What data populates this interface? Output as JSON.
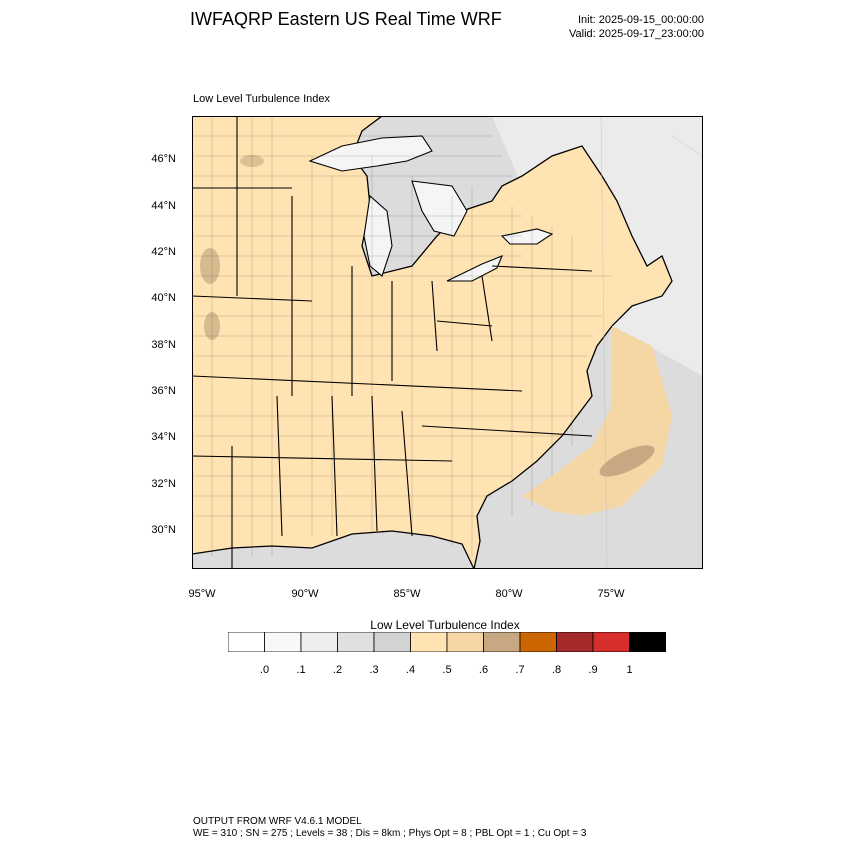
{
  "header": {
    "title": "IWFAQRP Eastern US Real Time WRF",
    "init": "Init: 2025-09-15_00:00:00",
    "valid": "Valid: 2025-09-17_23:00:00"
  },
  "map": {
    "field_title": "Low Level Turbulence Index",
    "lat_labels": [
      "46°N",
      "44°N",
      "42°N",
      "40°N",
      "38°N",
      "36°N",
      "34°N",
      "32°N",
      "30°N"
    ],
    "lon_labels": [
      "95°W",
      "90°W",
      "85°W",
      "80°W",
      "75°W"
    ],
    "colors": {
      "ocean_gray": "#dcdcdc",
      "light_gray": "#f0f0f0",
      "land_tan": "#ffe3b3",
      "tan2": "#f5d6a5",
      "brown": "#c8a882",
      "border": "#000000"
    }
  },
  "colorbar": {
    "title": "Low Level Turbulence Index",
    "labels": [
      ".0",
      ".1",
      ".2",
      ".3",
      ".4",
      ".5",
      ".6",
      ".7",
      ".8",
      ".9",
      "1"
    ],
    "colors": [
      "#ffffff",
      "#f8f8f8",
      "#eeeeee",
      "#e0e0e0",
      "#d3d3d3",
      "#ffe3b3",
      "#f5d6a5",
      "#c8a882",
      "#cc6600",
      "#a52a2a",
      "#d62d2d",
      "#000000"
    ]
  },
  "footer": {
    "line1": "OUTPUT FROM WRF V4.6.1 MODEL",
    "line2": "WE = 310 ; SN = 275 ; Levels = 38 ; Dis = 8km ; Phys Opt = 8 ; PBL Opt = 1 ; Cu Opt = 3"
  }
}
